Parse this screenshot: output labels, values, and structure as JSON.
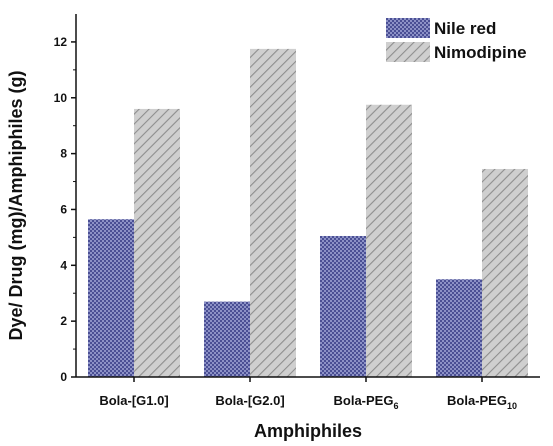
{
  "chart_data": {
    "type": "bar",
    "categories": [
      {
        "base": "Bola-[G1.0]",
        "sub": ""
      },
      {
        "base": "Bola-[G2.0]",
        "sub": ""
      },
      {
        "base": "Bola-PEG",
        "sub": "6"
      },
      {
        "base": "Bola-PEG",
        "sub": "10"
      }
    ],
    "series": [
      {
        "name": "Nile red",
        "values": [
          5.65,
          2.7,
          5.05,
          3.5
        ],
        "pattern": "crosshatch",
        "color": "#5a5fa3"
      },
      {
        "name": "Nimodipine",
        "values": [
          9.6,
          11.75,
          9.75,
          7.45
        ],
        "pattern": "diagonal-lines",
        "color": "#a8a8a8"
      }
    ],
    "xlabel": "Amphiphiles",
    "ylabel": "Dye/ Drug (mg)/Amphiphiles (g)",
    "ylim": [
      0,
      13
    ],
    "yticks": [
      0,
      2,
      4,
      6,
      8,
      10,
      12
    ],
    "legend_position": "top-right",
    "grid": false
  }
}
